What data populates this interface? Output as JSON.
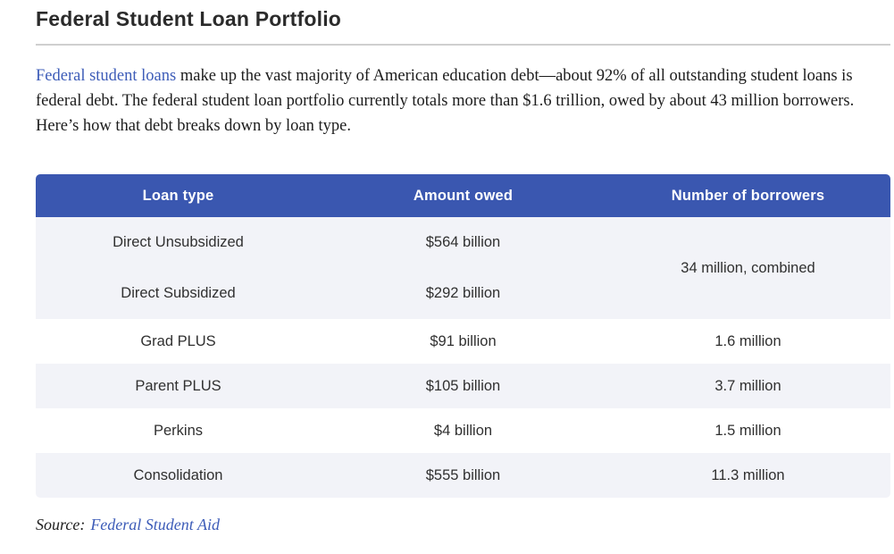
{
  "heading": {
    "title": "Federal Student Loan Portfolio"
  },
  "intro": {
    "link_text": "Federal student loans",
    "text_after_link": " make up the vast majority of American education debt—about 92% of all outstanding student loans is federal debt. The federal student loan portfolio currently totals more than $1.6 trillion, owed by about 43 million borrowers. Here’s how that debt breaks down by loan type."
  },
  "table": {
    "headers": {
      "loan_type": "Loan type",
      "amount": "Amount owed",
      "borrowers": "Number of borrowers"
    },
    "rows": [
      {
        "loan_type": "Direct Unsubsidized",
        "amount": "$564 billion",
        "borrowers": "34 million, combined"
      },
      {
        "loan_type": "Direct Subsidized",
        "amount": "$292 billion"
      },
      {
        "loan_type": "Grad PLUS",
        "amount": "$91 billion",
        "borrowers": "1.6 million"
      },
      {
        "loan_type": "Parent PLUS",
        "amount": "$105 billion",
        "borrowers": "3.7 million"
      },
      {
        "loan_type": "Perkins",
        "amount": "$4 billion",
        "borrowers": "1.5 million"
      },
      {
        "loan_type": "Consolidation",
        "amount": "$555 billion",
        "borrowers": "11.3 million"
      }
    ],
    "colors": {
      "header_bg": "#3a57b0",
      "header_text": "#ffffff",
      "stripe_bg": "#f2f3f8"
    }
  },
  "source": {
    "label": "Source:",
    "link_text": "Federal Student Aid"
  },
  "colors": {
    "link": "#3d5cb8"
  }
}
